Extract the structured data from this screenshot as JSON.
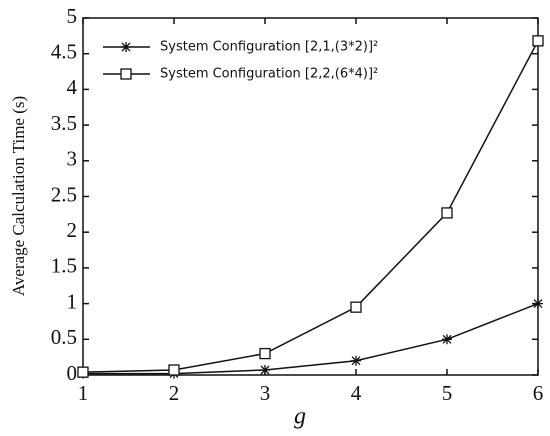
{
  "chart_data": {
    "type": "line",
    "x": [
      1,
      2,
      3,
      4,
      5,
      6
    ],
    "series": [
      {
        "name": "System Configuration [2,1,(3*2)]²",
        "marker": "star",
        "color": "#111111",
        "values": [
          0.02,
          0.02,
          0.07,
          0.2,
          0.5,
          1.0
        ]
      },
      {
        "name": "System Configuration [2,2,(6*4)]²",
        "marker": "square",
        "color": "#111111",
        "values": [
          0.04,
          0.07,
          0.3,
          0.95,
          2.27,
          4.68
        ]
      }
    ],
    "x_label": "g",
    "y_label": "Average Calculation Time (s)",
    "xlim": [
      1,
      6
    ],
    "xticks": [
      1,
      2,
      3,
      4,
      5,
      6
    ],
    "ylim": [
      0,
      5
    ],
    "yticks": [
      0,
      0.5,
      1,
      1.5,
      2,
      2.5,
      3,
      3.5,
      4,
      4.5,
      5
    ],
    "legend": "upper left",
    "grid": false
  }
}
